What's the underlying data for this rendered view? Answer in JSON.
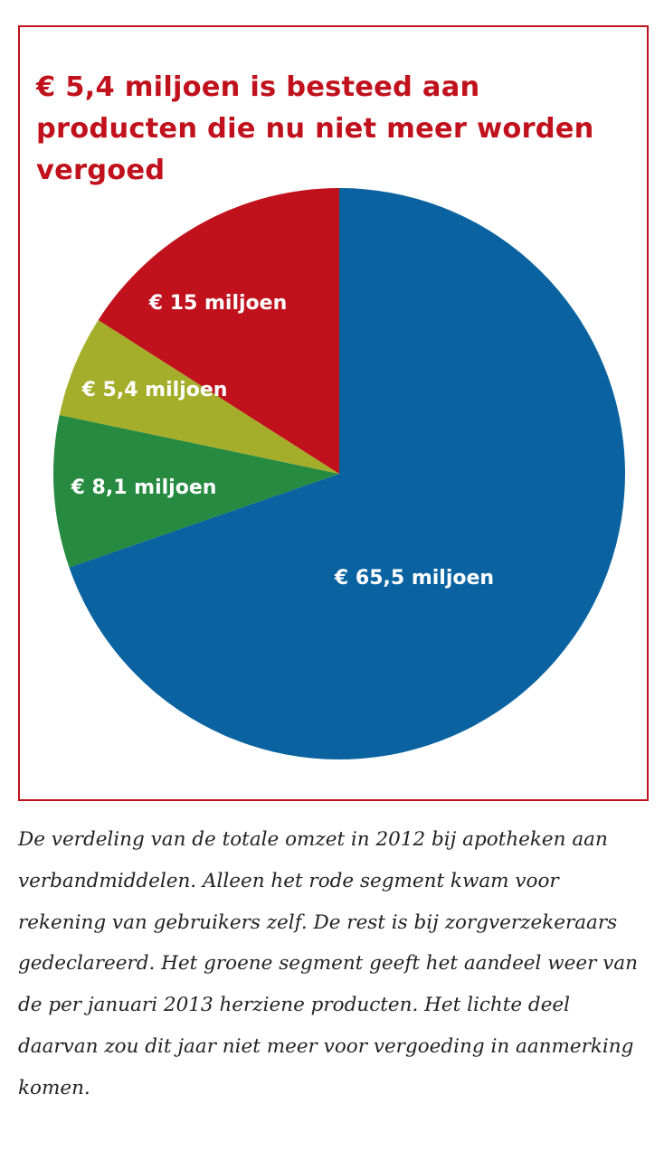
{
  "title": "€ 5,4 miljoen is besteed aan producten die nu niet meer worden vergoed",
  "caption": "De verdeling van de totale omzet in 2012 bij apotheken aan verbandmiddelen. Alleen het rode segment kwam voor rekening van gebruikers zelf. De rest is bij zorgverzekeraars gedeclareerd. Het groene segment geeft het aandeel weer van de per januari 2013 herziene producten. Het lichte deel daarvan zou dit jaar niet meer voor vergoeding in aanmerking komen.",
  "chart_data": {
    "type": "pie",
    "title": "€ 5,4 miljoen is besteed aan producten die nu niet meer worden vergoed",
    "unit": "miljoen €",
    "start": "top, clockwise",
    "slices": [
      {
        "value": 65.5,
        "label": "€ 65,5 miljoen",
        "color": "#0a63a0"
      },
      {
        "value": 8.1,
        "label": "€ 8,1 miljoen",
        "color": "#268a40"
      },
      {
        "value": 5.4,
        "label": "€ 5,4 miljoen",
        "color": "#a5ae2a"
      },
      {
        "value": 15,
        "label": "€ 15 miljoen",
        "color": "#c0111c"
      }
    ]
  }
}
